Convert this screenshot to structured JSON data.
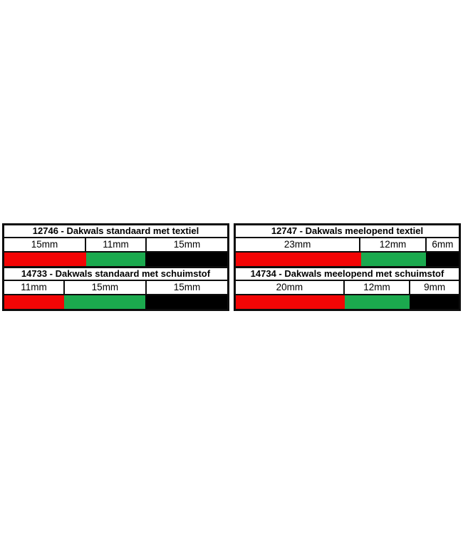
{
  "page": {
    "background": "#ffffff"
  },
  "colors": {
    "red": "#f30505",
    "green": "#1ba94e",
    "black": "#000000"
  },
  "tables": [
    {
      "id": "left",
      "blocks": [
        {
          "title": "12746 - Dakwals standaard met textiel",
          "segments": [
            {
              "label": "15mm",
              "mm": 15,
              "color": "red"
            },
            {
              "label": "11mm",
              "mm": 11,
              "color": "green"
            },
            {
              "label": "15mm",
              "mm": 15,
              "color": "black"
            }
          ]
        },
        {
          "title": "14733 - Dakwals standaard met schuimstof",
          "segments": [
            {
              "label": "11mm",
              "mm": 11,
              "color": "red"
            },
            {
              "label": "15mm",
              "mm": 15,
              "color": "green"
            },
            {
              "label": "15mm",
              "mm": 15,
              "color": "black"
            }
          ]
        }
      ]
    },
    {
      "id": "right",
      "blocks": [
        {
          "title": "12747 - Dakwals meelopend textiel",
          "segments": [
            {
              "label": "23mm",
              "mm": 23,
              "color": "red"
            },
            {
              "label": "12mm",
              "mm": 12,
              "color": "green"
            },
            {
              "label": "6mm",
              "mm": 6,
              "color": "black"
            }
          ]
        },
        {
          "title": "14734 - Dakwals meelopend met schuimstof",
          "segments": [
            {
              "label": "20mm",
              "mm": 20,
              "color": "red"
            },
            {
              "label": "12mm",
              "mm": 12,
              "color": "green"
            },
            {
              "label": "9mm",
              "mm": 9,
              "color": "black"
            }
          ]
        }
      ]
    }
  ]
}
